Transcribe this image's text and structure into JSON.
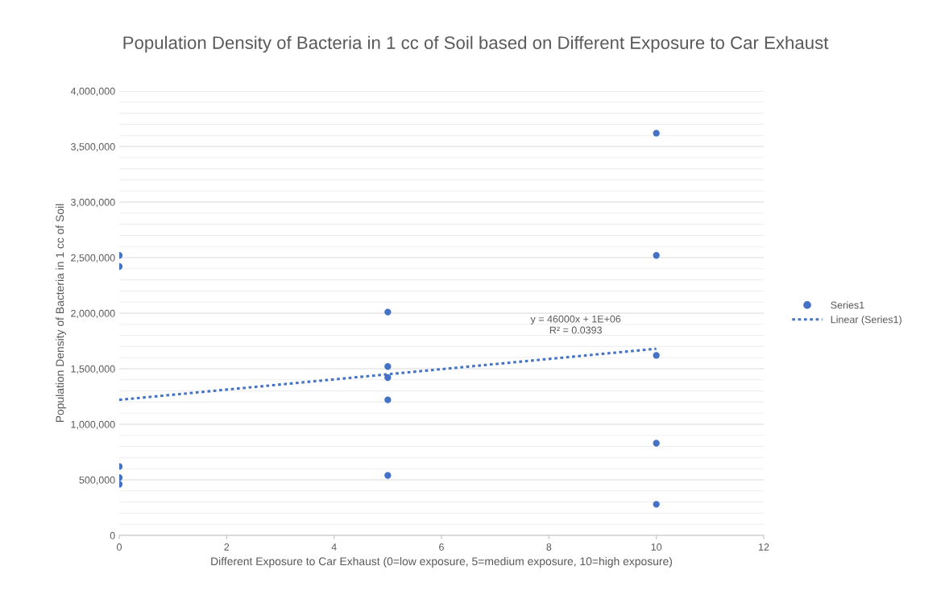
{
  "chart_data": {
    "type": "scatter",
    "title": "Population Density of Bacteria in 1 cc of Soil based on Different Exposure to Car Exhaust",
    "xlabel": "Different Exposure to Car Exhaust (0=low exposure, 5=medium exposure, 10=high exposure)",
    "ylabel": "Population Density of Bacteria in 1 cc of Soil",
    "series": [
      {
        "name": "Series1",
        "color": "#4472c4",
        "marker": "circle",
        "x": [
          0,
          0,
          0,
          0,
          0,
          5,
          5,
          5,
          5,
          5,
          10,
          10,
          10,
          10,
          10
        ],
        "values": [
          2520000,
          2420000,
          620000,
          520000,
          460000,
          2010000,
          1520000,
          1420000,
          1220000,
          540000,
          3620000,
          2520000,
          1620000,
          830000,
          280000
        ]
      },
      {
        "name": "Linear (Series1)",
        "type": "line",
        "color": "#4472c4",
        "line_style": "dotted",
        "x": [
          0,
          10
        ],
        "values": [
          1220000,
          1680000
        ]
      }
    ],
    "annotations": [
      "y = 46000x + 1E+06",
      "R² = 0.0393"
    ],
    "xlim": [
      0,
      12
    ],
    "xticks": [
      0,
      2,
      4,
      6,
      8,
      10,
      12
    ],
    "ylim": [
      0,
      4000000
    ],
    "yticks": [
      {
        "value": 0,
        "label": "0"
      },
      {
        "value": 100000,
        "label": null
      },
      {
        "value": 200000,
        "label": null
      },
      {
        "value": 300000,
        "label": null
      },
      {
        "value": 400000,
        "label": null
      },
      {
        "value": 500000,
        "label": "500,000"
      },
      {
        "value": 600000,
        "label": null
      },
      {
        "value": 700000,
        "label": null
      },
      {
        "value": 800000,
        "label": null
      },
      {
        "value": 900000,
        "label": null
      },
      {
        "value": 1000000,
        "label": "1,000,000"
      },
      {
        "value": 1100000,
        "label": null
      },
      {
        "value": 1200000,
        "label": null
      },
      {
        "value": 1300000,
        "label": null
      },
      {
        "value": 1400000,
        "label": null
      },
      {
        "value": 1500000,
        "label": "1,500,000"
      },
      {
        "value": 1600000,
        "label": null
      },
      {
        "value": 1700000,
        "label": null
      },
      {
        "value": 1800000,
        "label": null
      },
      {
        "value": 1900000,
        "label": null
      },
      {
        "value": 2000000,
        "label": "2,000,000"
      },
      {
        "value": 2100000,
        "label": null
      },
      {
        "value": 2200000,
        "label": null
      },
      {
        "value": 2300000,
        "label": null
      },
      {
        "value": 2400000,
        "label": null
      },
      {
        "value": 2500000,
        "label": "2,500,000"
      },
      {
        "value": 2600000,
        "label": null
      },
      {
        "value": 2700000,
        "label": null
      },
      {
        "value": 2800000,
        "label": null
      },
      {
        "value": 2900000,
        "label": null
      },
      {
        "value": 3000000,
        "label": "3,000,000"
      },
      {
        "value": 3100000,
        "label": null
      },
      {
        "value": 3200000,
        "label": null
      },
      {
        "value": 3300000,
        "label": null
      },
      {
        "value": 3400000,
        "label": null
      },
      {
        "value": 3500000,
        "label": "3,500,000"
      },
      {
        "value": 3600000,
        "label": null
      },
      {
        "value": 3700000,
        "label": null
      },
      {
        "value": 3800000,
        "label": null
      },
      {
        "value": 3900000,
        "label": null
      },
      {
        "value": 4000000,
        "label": "4,000,000"
      }
    ],
    "grid": "y",
    "legend": "right"
  }
}
